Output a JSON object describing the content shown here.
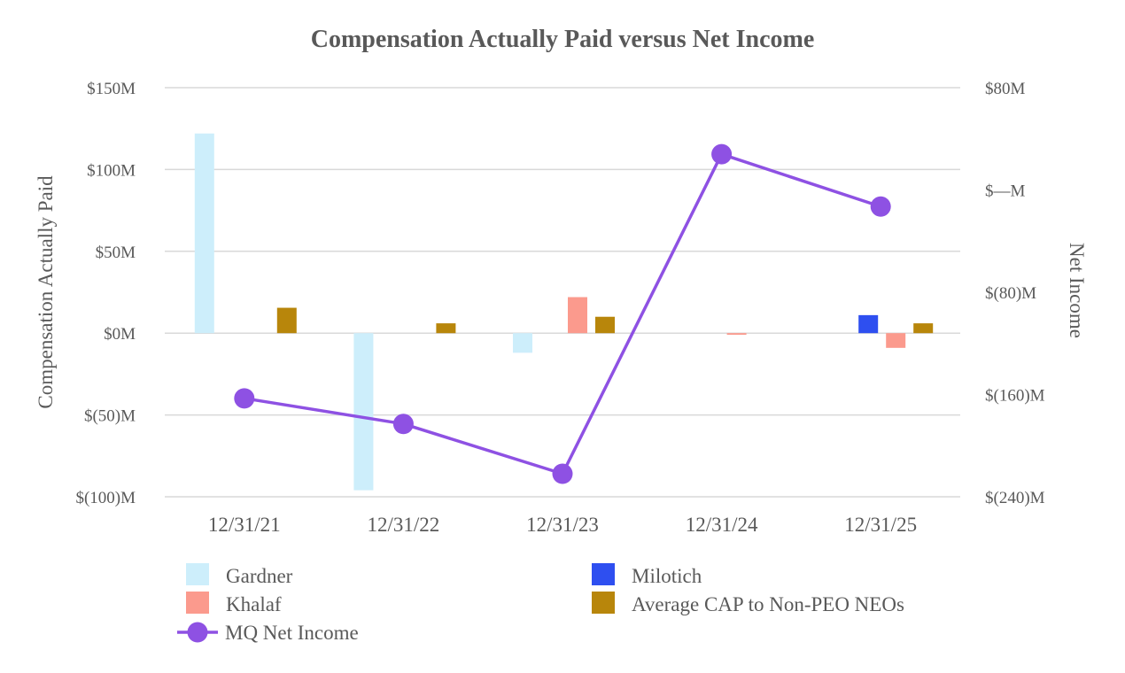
{
  "chart_data": {
    "type": "bar",
    "title": "Compensation Actually Paid versus Net Income",
    "categories": [
      "12/31/21",
      "12/31/22",
      "12/31/23",
      "12/31/24",
      "12/31/25"
    ],
    "ylabel": "Compensation Actually Paid",
    "ylabel_right": "Net Income",
    "ylim": [
      -100,
      150
    ],
    "ylim_right": [
      -240,
      80
    ],
    "yticks": [
      150,
      100,
      50,
      0,
      -50,
      -100
    ],
    "ytick_labels": [
      "$150M",
      "$100M",
      "$50M",
      "$0M",
      "$(50)M",
      "$(100)M"
    ],
    "yticks_right": [
      80,
      0,
      -80,
      -160,
      -240
    ],
    "ytick_labels_right": [
      "$80M",
      "$—M",
      "$(80)M",
      "$(160)M",
      "$(240)M"
    ],
    "grid": true,
    "legend_position": "bottom",
    "series": [
      {
        "name": "Gardner",
        "type": "bar",
        "slot": 0,
        "color": "#cdeefb",
        "values": [
          122,
          -96,
          -12,
          null,
          null
        ]
      },
      {
        "name": "Milotich",
        "type": "bar",
        "slot": 1,
        "color": "#2e4ff0",
        "values": [
          null,
          null,
          null,
          null,
          11
        ]
      },
      {
        "name": "Khalaf",
        "type": "bar",
        "slot": 2,
        "color": "#fb9a8d",
        "values": [
          null,
          null,
          22,
          -1,
          -9
        ]
      },
      {
        "name": "Average CAP to Non-PEO NEOs",
        "type": "bar",
        "slot": 3,
        "color": "#b8860b",
        "values": [
          15.5,
          6,
          10,
          null,
          6
        ]
      },
      {
        "name": "MQ Net Income",
        "type": "line",
        "axis": "right",
        "color": "#8e51e3",
        "values": [
          -163,
          -183,
          -222,
          28,
          -13
        ]
      }
    ]
  }
}
